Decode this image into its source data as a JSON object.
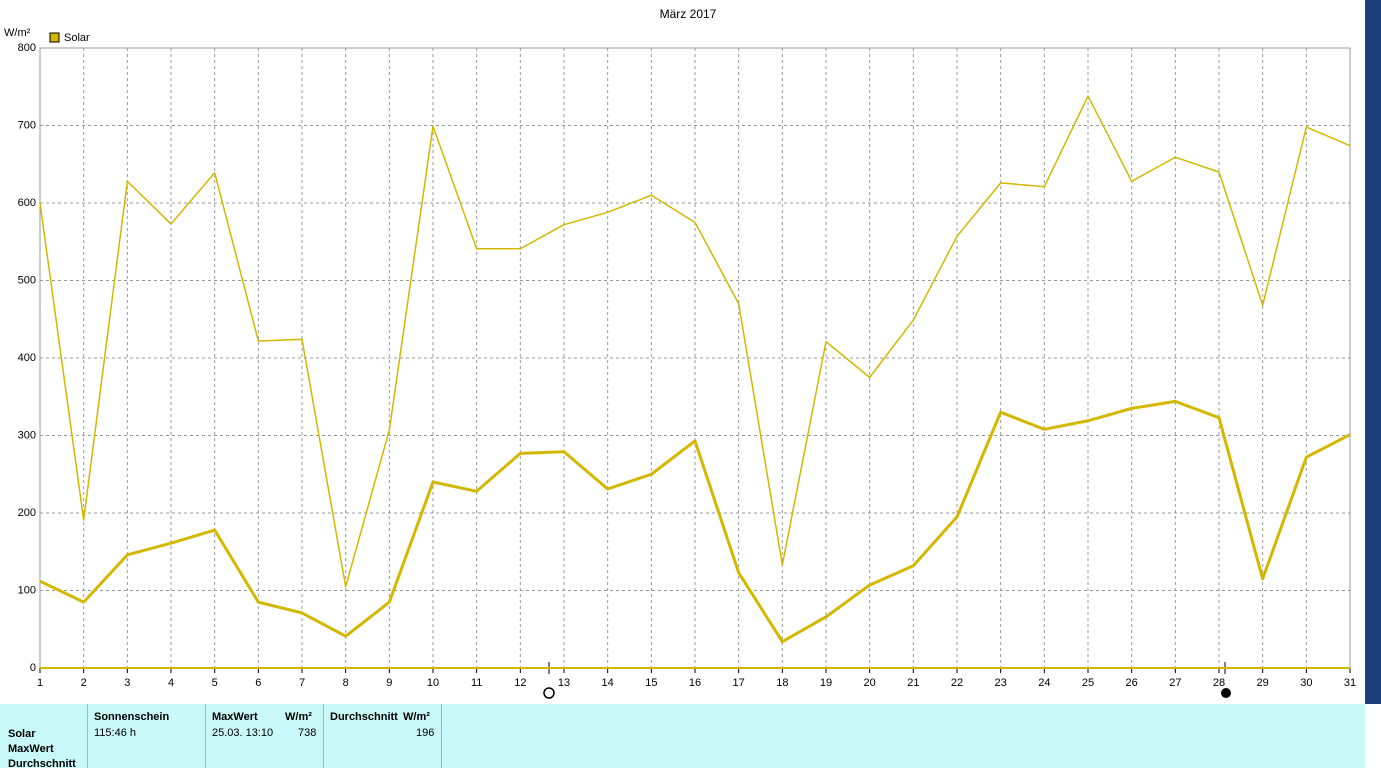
{
  "chart_data": {
    "type": "line",
    "title": "März 2017",
    "y_label": "W/m²",
    "legend": {
      "label": "Solar",
      "color": "#d4b800",
      "position": "top-left"
    },
    "x": [
      1,
      2,
      3,
      4,
      5,
      6,
      7,
      8,
      9,
      10,
      11,
      12,
      13,
      14,
      15,
      16,
      17,
      18,
      19,
      20,
      21,
      22,
      23,
      24,
      25,
      26,
      27,
      28,
      29,
      30,
      31
    ],
    "xlim": [
      1,
      31
    ],
    "xticks": [
      1,
      2,
      3,
      4,
      5,
      6,
      7,
      8,
      9,
      10,
      11,
      12,
      13,
      14,
      15,
      16,
      17,
      18,
      19,
      20,
      21,
      22,
      23,
      24,
      25,
      26,
      27,
      28,
      29,
      30,
      31
    ],
    "ylim": [
      0,
      800
    ],
    "yticks": [
      0,
      100,
      200,
      300,
      400,
      500,
      600,
      700,
      800
    ],
    "grid": true,
    "series": [
      {
        "color": "#d4b800",
        "width": 1.5,
        "values": [
          600,
          191,
          628,
          573,
          639,
          422,
          424,
          105,
          307,
          699,
          541,
          541,
          572,
          588,
          610,
          575,
          470,
          133,
          421,
          375,
          449,
          557,
          626,
          621,
          738,
          628,
          659,
          640,
          468,
          698,
          674
        ]
      },
      {
        "color": "#d4b800",
        "width": 3,
        "values": [
          112,
          85,
          146,
          161,
          178,
          85,
          71,
          41,
          85,
          240,
          228,
          277,
          279,
          231,
          250,
          293,
          123,
          34,
          66,
          107,
          132,
          195,
          330,
          308,
          319,
          335,
          344,
          323,
          115,
          272,
          301
        ]
      }
    ]
  },
  "summary": {
    "rows": [
      "Solar",
      "MaxWert",
      "Durchschnitt"
    ],
    "sunshine": {
      "header": "Sonnenschein",
      "value": "115:46 h"
    },
    "max": {
      "header": "MaxWert",
      "unit": "W/m²",
      "date": "25.03.  13:10",
      "value": "738"
    },
    "avg": {
      "header": "Durchschnitt",
      "unit": "W/m²",
      "value": "196"
    }
  }
}
